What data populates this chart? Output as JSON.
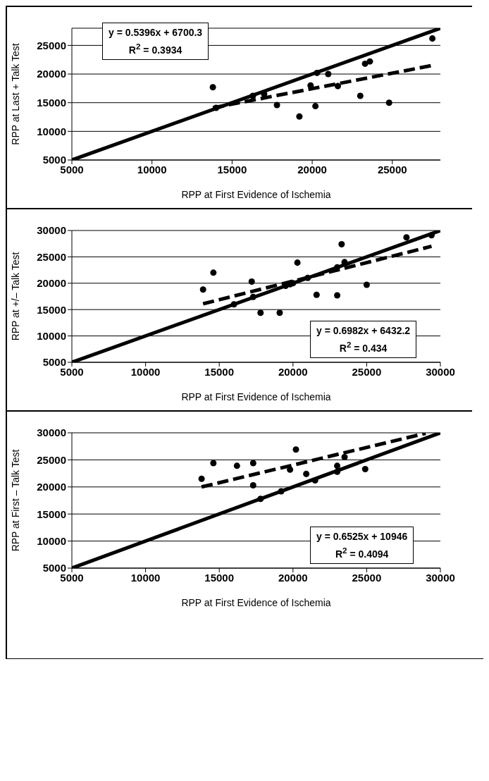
{
  "chart_data": [
    {
      "type": "scatter",
      "xlabel": "RPP at First Evidence of Ischemia",
      "ylabel": "RPP at Last + Talk Test",
      "xlim": [
        5000,
        28000
      ],
      "xticks": [
        5000,
        10000,
        15000,
        20000,
        25000
      ],
      "ylim": [
        5000,
        28000
      ],
      "yticks": [
        5000,
        10000,
        15000,
        20000,
        25000
      ],
      "grid": "y",
      "marker": "circle",
      "annotations": [
        "y = 0.5396x + 6700.3",
        "R$^{2}$ = 0.3934"
      ],
      "series": [
        {
          "color": "#000000",
          "x": [
            13800,
            14000,
            16200,
            16300,
            17000,
            17800,
            19200,
            19900,
            20200,
            20300,
            21000,
            21600,
            23000,
            23300,
            23600,
            24800,
            27500
          ],
          "values": [
            17700,
            14100,
            null,
            16200,
            16500,
            14600,
            12600,
            18000,
            14400,
            20200,
            20000,
            17900,
            16200,
            21800,
            22200,
            15000,
            26200
          ]
        },
        {
          "type": "line",
          "color": "#000000",
          "marker": "none",
          "line_style": "solid",
          "x": [
            5000,
            28000
          ],
          "values": [
            5000,
            28000
          ]
        },
        {
          "type": "line",
          "color": "#000000",
          "marker": "none",
          "line_style": "dashed",
          "x": [
            13800,
            27500
          ],
          "values": [
            14100,
            21500
          ]
        }
      ]
    },
    {
      "type": "scatter",
      "xlabel": "RPP at First Evidence of Ischemia",
      "ylabel": "RPP at +/– Talk Test",
      "xlim": [
        5000,
        30000
      ],
      "xticks": [
        5000,
        10000,
        15000,
        20000,
        25000,
        30000
      ],
      "ylim": [
        5000,
        30000
      ],
      "yticks": [
        5000,
        10000,
        15000,
        20000,
        25000,
        30000
      ],
      "grid": "y",
      "marker": "circle",
      "annotations": [
        "y = 0.6982x + 6432.2",
        "R$^{2}$ = 0.434"
      ],
      "series": [
        {
          "color": "#000000",
          "x": [
            13900,
            14600,
            16000,
            17200,
            17300,
            17800,
            19100,
            19500,
            19800,
            20000,
            20300,
            21000,
            21600,
            23000,
            23000,
            23300,
            23500,
            25000,
            27700,
            29400
          ],
          "values": [
            18800,
            22000,
            16000,
            20300,
            17400,
            14400,
            14400,
            19500,
            19800,
            20000,
            23900,
            21000,
            17800,
            17700,
            23000,
            27400,
            24000,
            19700,
            28700,
            29100
          ]
        },
        {
          "type": "line",
          "color": "#000000",
          "marker": "none",
          "line_style": "solid",
          "x": [
            5000,
            30000
          ],
          "values": [
            5000,
            30000
          ]
        },
        {
          "type": "line",
          "color": "#000000",
          "marker": "none",
          "line_style": "dashed",
          "x": [
            13900,
            29400
          ],
          "values": [
            16100,
            27000
          ]
        }
      ]
    },
    {
      "type": "scatter",
      "xlabel": "RPP at First Evidence of Ischemia",
      "ylabel": "RPP at First – Talk Test",
      "xlim": [
        5000,
        30000
      ],
      "xticks": [
        5000,
        10000,
        15000,
        20000,
        25000,
        30000
      ],
      "ylim": [
        5000,
        30000
      ],
      "yticks": [
        5000,
        10000,
        15000,
        20000,
        25000,
        30000
      ],
      "grid": "y",
      "marker": "circle",
      "annotations": [
        "y = 0.6525x + 10946",
        "R$^{2}$ = 0.4094"
      ],
      "series": [
        {
          "color": "#000000",
          "x": [
            13800,
            14600,
            16200,
            17300,
            17300,
            17800,
            19200,
            19800,
            20200,
            20900,
            21500,
            23000,
            23000,
            23500,
            24900
          ],
          "values": [
            21500,
            24400,
            23900,
            24400,
            20300,
            17800,
            19200,
            23200,
            26900,
            22400,
            21200,
            22800,
            23900,
            25500,
            23300
          ]
        },
        {
          "type": "line",
          "color": "#000000",
          "marker": "none",
          "line_style": "solid",
          "x": [
            5000,
            30000
          ],
          "values": [
            5000,
            30000
          ]
        },
        {
          "type": "line",
          "color": "#000000",
          "marker": "none",
          "line_style": "dashed",
          "x": [
            13800,
            29000
          ],
          "values": [
            20000,
            29900
          ]
        }
      ]
    }
  ]
}
